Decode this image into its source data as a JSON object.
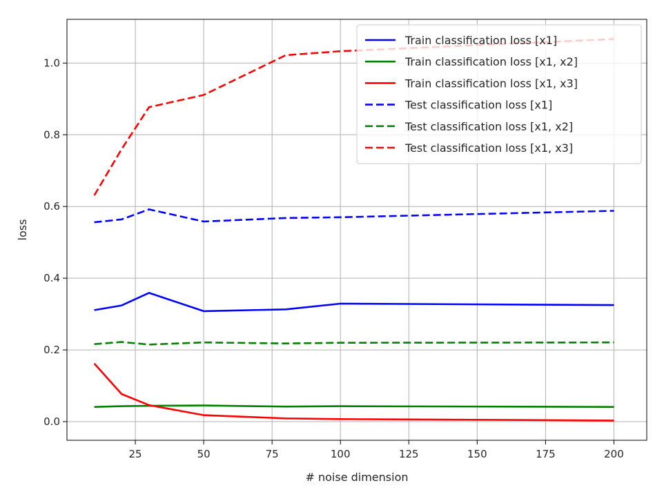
{
  "chart_data": {
    "type": "line",
    "title": "",
    "xlabel": "# noise dimension",
    "ylabel": "loss",
    "xlim": [
      -0.0,
      212
    ],
    "ylim": [
      -0.052,
      1.122
    ],
    "xticks": [
      25,
      50,
      75,
      100,
      125,
      150,
      175,
      200
    ],
    "yticks": [
      0.0,
      0.2,
      0.4,
      0.6,
      0.8,
      1.0
    ],
    "xtick_labels": [
      "25",
      "50",
      "75",
      "100",
      "125",
      "150",
      "175",
      "200"
    ],
    "ytick_labels": [
      "0.0",
      "0.2",
      "0.4",
      "0.6",
      "0.8",
      "1.0"
    ],
    "grid": true,
    "legend_position": "top-right",
    "x": [
      10,
      20,
      30,
      50,
      80,
      100,
      200
    ],
    "series": [
      {
        "name": "Train classification loss [x1]",
        "color": "#0000ff",
        "style": "solid",
        "values": [
          0.311,
          0.324,
          0.359,
          0.308,
          0.313,
          0.329,
          0.325
        ]
      },
      {
        "name": "Train classification loss [x1, x2]",
        "color": "#008000",
        "style": "solid",
        "values": [
          0.041,
          0.043,
          0.044,
          0.045,
          0.042,
          0.043,
          0.041
        ]
      },
      {
        "name": "Train classification loss [x1, x3]",
        "color": "#ff0000",
        "style": "solid",
        "values": [
          0.162,
          0.077,
          0.046,
          0.018,
          0.009,
          0.007,
          0.003
        ]
      },
      {
        "name": "Test classification loss [x1]",
        "color": "#0000ff",
        "style": "dashed",
        "values": [
          0.556,
          0.564,
          0.592,
          0.558,
          0.568,
          0.57,
          0.588
        ]
      },
      {
        "name": "Test classification loss [x1, x2]",
        "color": "#008000",
        "style": "dashed",
        "values": [
          0.216,
          0.222,
          0.215,
          0.221,
          0.218,
          0.22,
          0.221
        ]
      },
      {
        "name": "Test classification loss [x1, x3]",
        "color": "#ff0000",
        "style": "dashed",
        "values": [
          0.631,
          0.76,
          0.877,
          0.911,
          1.022,
          1.033,
          1.067
        ]
      }
    ]
  }
}
